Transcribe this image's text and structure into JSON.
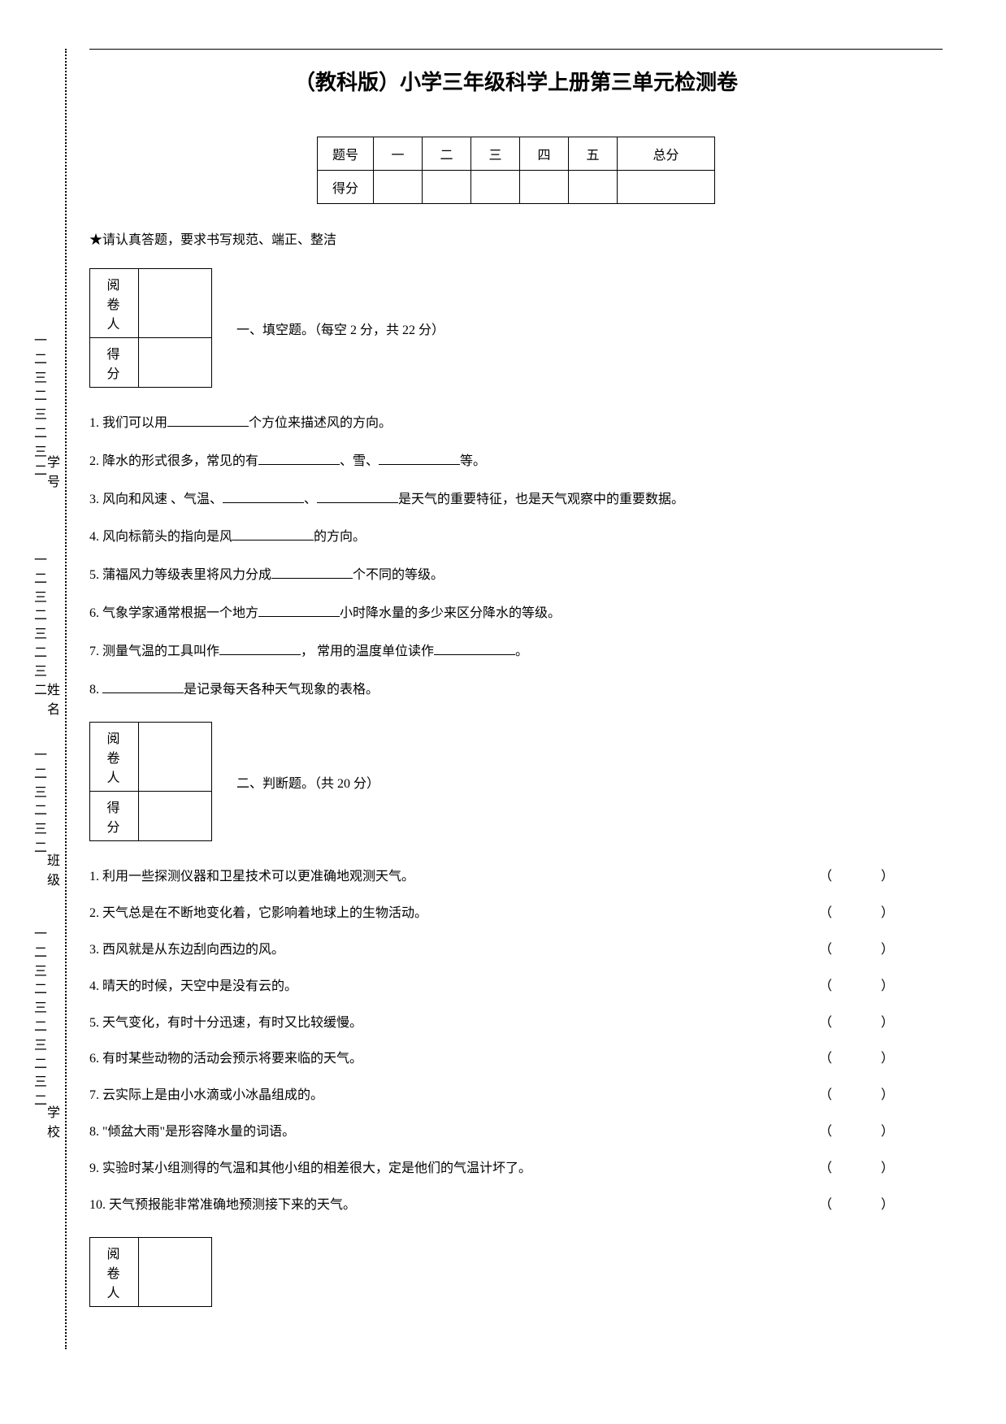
{
  "title": "（教科版）小学三年级科学上册第三单元检测卷",
  "score_header": [
    "题号",
    "一",
    "二",
    "三",
    "四",
    "五",
    "总分"
  ],
  "score_row_label": "得分",
  "instruction": "★请认真答题，要求书写规范、端正、整洁",
  "grader_labels": {
    "reviewer": "阅卷人",
    "score": "得 分"
  },
  "section1": {
    "title": "一、填空题。（每空 2 分，共 22 分）",
    "q1a": "1. 我们可以用",
    "q1b": "个方位来描述风的方向。",
    "q2a": "2. 降水的形式很多，常见的有",
    "q2b": "、雪、",
    "q2c": "等。",
    "q3a": "3. 风向和风速 、气温、",
    "q3b": "、",
    "q3c": "是天气的重要特征，也是天气观察中的重要数据。",
    "q4a": "4. 风向标箭头的指向是风",
    "q4b": "的方向。",
    "q5a": "5. 蒲福风力等级表里将风力分成",
    "q5b": "个不同的等级。",
    "q6a": "6. 气象学家通常根据一个地方",
    "q6b": "小时降水量的多少来区分降水的等级。",
    "q7a": "7. 测量气温的工具叫作",
    "q7b": "， 常用的温度单位读作",
    "q7c": "。",
    "q8a": "8. ",
    "q8b": "是记录每天各种天气现象的表格。"
  },
  "section2": {
    "title": "二、判断题。（共 20 分）",
    "items": [
      "1. 利用一些探测仪器和卫星技术可以更准确地观测天气。",
      "2. 天气总是在不断地变化着，它影响着地球上的生物活动。",
      "3. 西风就是从东边刮向西边的风。",
      "4. 晴天的时候，天空中是没有云的。",
      "5. 天气变化，有时十分迅速，有时又比较缓慢。",
      "6. 有时某些动物的活动会预示将要来临的天气。",
      "7. 云实际上是由小水滴或小冰晶组成的。",
      "8. \"倾盆大雨\"是形容降水量的词语。",
      "9. 实验时某小组测得的气温和其他小组的相差很大，定是他们的气温计坏了。",
      "10. 天气预报能非常准确地预测接下来的天气。"
    ]
  },
  "side": {
    "label1": "学号",
    "label2": "姓名",
    "label3": "班级",
    "label4": "学校"
  }
}
